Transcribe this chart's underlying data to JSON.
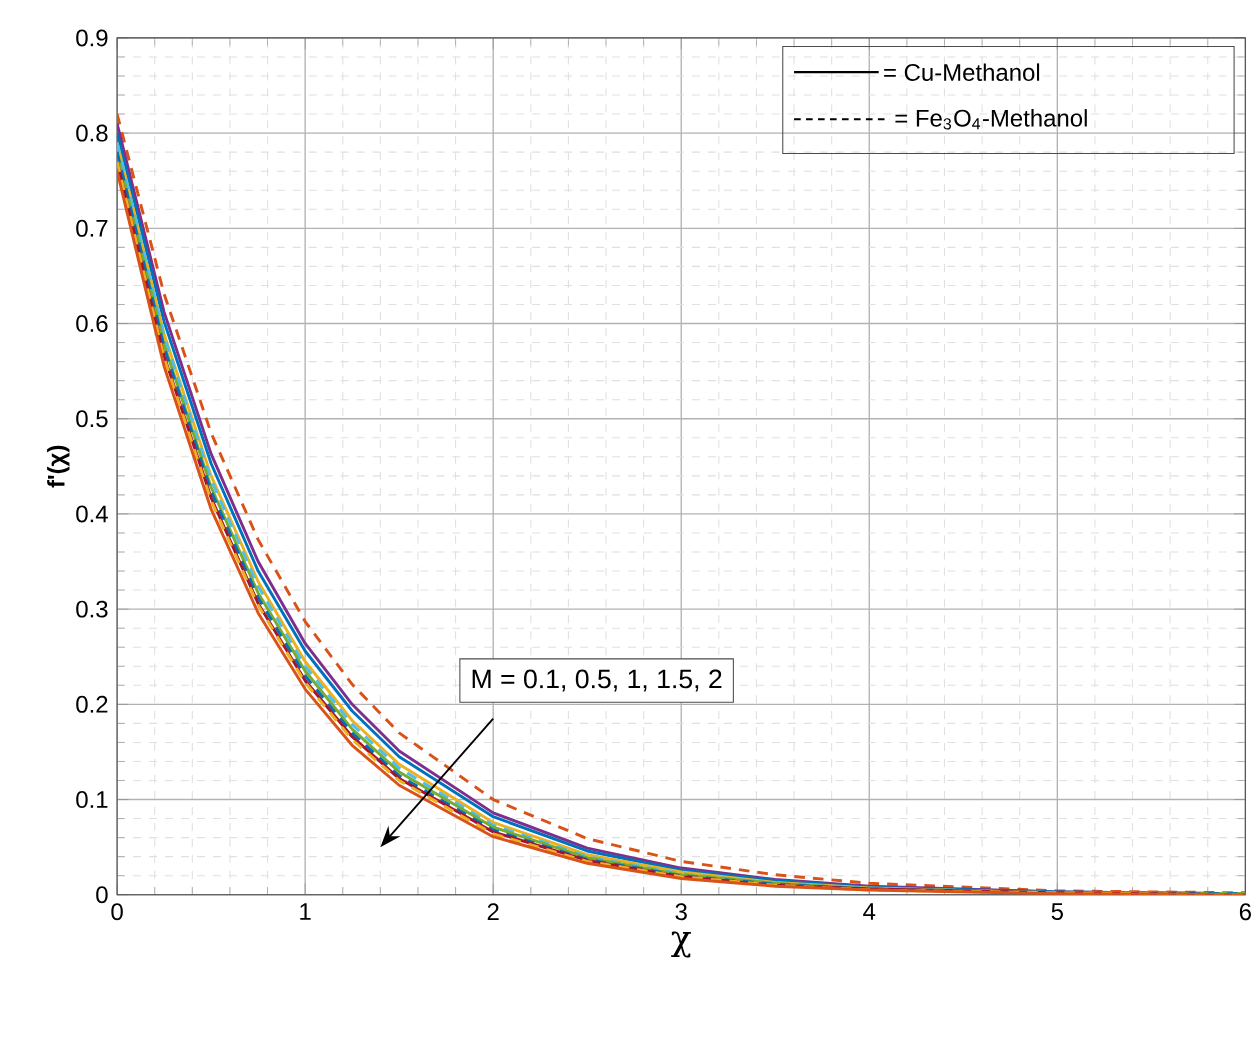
{
  "chart_data": {
    "type": "line",
    "xlabel": "χ",
    "ylabel": "f'(χ)",
    "x": [
      0,
      0.25,
      0.5,
      0.75,
      1,
      1.25,
      1.5,
      2,
      2.5,
      3,
      3.5,
      4,
      5,
      6
    ],
    "series": [
      {
        "color": "#D95319",
        "line_style": "dashed",
        "values": [
          0.82,
          0.631,
          0.485,
          0.373,
          0.287,
          0.221,
          0.17,
          0.1,
          0.059,
          0.035,
          0.021,
          0.012,
          0.004,
          0.002
        ]
      },
      {
        "color": "#7E2F8E",
        "line_style": "solid",
        "values": [
          0.81,
          0.612,
          0.463,
          0.35,
          0.264,
          0.2,
          0.151,
          0.086,
          0.049,
          0.028,
          0.016,
          0.009,
          0.003,
          0.001
        ]
      },
      {
        "color": "#0072BD",
        "line_style": "solid",
        "values": [
          0.8,
          0.602,
          0.453,
          0.34,
          0.256,
          0.193,
          0.145,
          0.082,
          0.046,
          0.026,
          0.015,
          0.008,
          0.003,
          0.001
        ]
      },
      {
        "color": "#EDB120",
        "line_style": "solid",
        "values": [
          0.79,
          0.589,
          0.44,
          0.329,
          0.245,
          0.183,
          0.137,
          0.076,
          0.042,
          0.024,
          0.013,
          0.007,
          0.002,
          0.001
        ]
      },
      {
        "color": "#4DBEEE",
        "line_style": "dashed",
        "values": [
          0.79,
          0.587,
          0.436,
          0.324,
          0.24,
          0.179,
          0.133,
          0.073,
          0.04,
          0.022,
          0.012,
          0.007,
          0.002,
          0.001
        ]
      },
      {
        "color": "#77AC30",
        "line_style": "solid",
        "values": [
          0.78,
          0.578,
          0.428,
          0.317,
          0.235,
          0.174,
          0.129,
          0.071,
          0.039,
          0.021,
          0.012,
          0.006,
          0.002,
          0.001
        ]
      },
      {
        "color": "#0072BD",
        "line_style": "dashed",
        "values": [
          0.78,
          0.575,
          0.424,
          0.312,
          0.23,
          0.17,
          0.125,
          0.068,
          0.037,
          0.02,
          0.011,
          0.006,
          0.002,
          0.001
        ]
      },
      {
        "color": "#A2142F",
        "line_style": "solid",
        "values": [
          0.77,
          0.566,
          0.417,
          0.306,
          0.225,
          0.166,
          0.122,
          0.066,
          0.036,
          0.019,
          0.01,
          0.006,
          0.002,
          0.0
        ]
      },
      {
        "color": "#EDB120",
        "line_style": "dashed",
        "values": [
          0.77,
          0.564,
          0.414,
          0.304,
          0.223,
          0.163,
          0.12,
          0.064,
          0.035,
          0.019,
          0.01,
          0.005,
          0.002,
          0.0
        ]
      },
      {
        "color": "#D95319",
        "line_style": "solid",
        "values": [
          0.76,
          0.555,
          0.405,
          0.296,
          0.216,
          0.157,
          0.115,
          0.061,
          0.033,
          0.017,
          0.009,
          0.005,
          0.001,
          0.0
        ]
      }
    ],
    "xlim": [
      0,
      6
    ],
    "ylim": [
      0,
      0.9
    ],
    "xticks": [
      0,
      1,
      2,
      3,
      4,
      5,
      6
    ],
    "yticks": [
      0,
      0.1,
      0.2,
      0.3,
      0.4,
      0.5,
      0.6,
      0.7,
      0.8,
      0.9
    ],
    "grid": true,
    "marker": "none",
    "annotations": [
      "= Cu-Methanol",
      "= Fe$_{3}$O$_{4}$-Methanol",
      "M = 0.1, 0.5, 1, 1.5, 2"
    ]
  }
}
